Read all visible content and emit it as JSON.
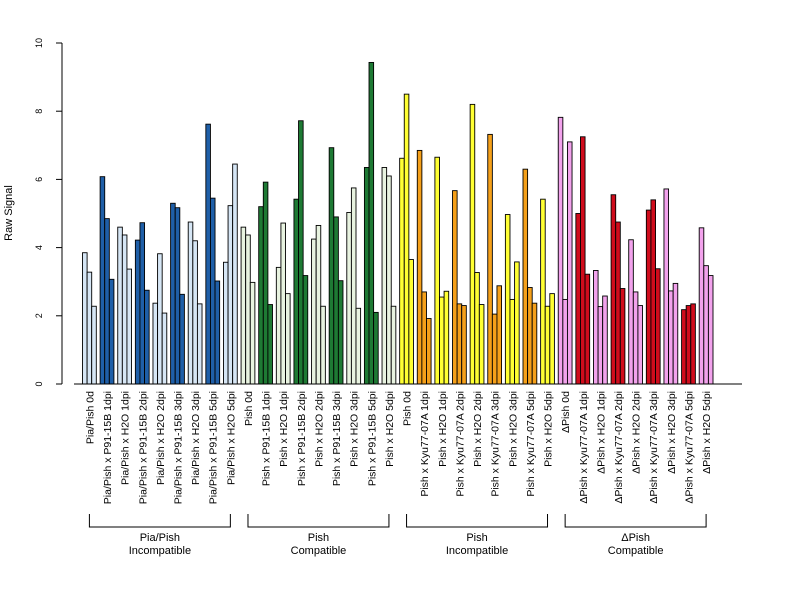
{
  "chart_data": {
    "type": "bar",
    "ylabel": "Raw Signal",
    "ylim": [
      0,
      10
    ],
    "yticks": [
      0,
      2,
      4,
      6,
      8,
      10
    ],
    "categories": [
      "Pia/Pish 0d",
      "Pia/Pish x P91-15B 1dpi",
      "Pia/Pish x H2O 1dpi",
      "Pia/Pish x P91-15B 2dpi",
      "Pia/Pish x H2O 2dpi",
      "Pia/Pish x P91-15B 3dpi",
      "Pia/Pish x H2O 3dpi",
      "Pia/Pish x P91-15B 5dpi",
      "Pia/Pish x H2O 5dpi",
      "Pish 0d",
      "Pish x P91-15B 1dpi",
      "Pish x H2O 1dpi",
      "Pish x P91-15B 2dpi",
      "Pish x H2O 2dpi",
      "Pish x P91-15B 3dpi",
      "Pish x H2O 3dpi",
      "Pish x P91-15B 5dpi",
      "Pish x H2O 5dpi",
      "Pish 0d",
      "Pish x Kyu77-07A 1dpi",
      "Pish x H2O 1dpi",
      "Pish x Kyu77-07A 2dpi",
      "Pish x H2O 2dpi",
      "Pish x Kyu77-07A 3dpi",
      "Pish x H2O 3dpi",
      "Pish x Kyu77-07A 5dpi",
      "Pish x H2O 5dpi",
      "ΔPish 0d",
      "ΔPish x Kyu77-07A 1dpi",
      "ΔPish x H2O 1dpi",
      "ΔPish x Kyu77-07A 2dpi",
      "ΔPish x H2O 2dpi",
      "ΔPish x Kyu77-07A 3dpi",
      "ΔPish x H2O 3dpi",
      "ΔPish x Kyu77-07A 5dpi",
      "ΔPish x H2O 5dpi"
    ],
    "replicate_values": [
      [
        3.85,
        3.28,
        2.28
      ],
      [
        6.08,
        4.85,
        3.07
      ],
      [
        4.6,
        4.37,
        3.37
      ],
      [
        4.22,
        4.73,
        2.75
      ],
      [
        2.37,
        3.82,
        2.08
      ],
      [
        5.3,
        5.17,
        2.63
      ],
      [
        4.75,
        4.2,
        2.35
      ],
      [
        7.62,
        5.45,
        3.02
      ],
      [
        3.57,
        5.23,
        6.45
      ],
      [
        4.6,
        4.37,
        2.98
      ],
      [
        5.2,
        5.92,
        2.33
      ],
      [
        3.42,
        4.72,
        2.65
      ],
      [
        5.42,
        7.72,
        3.18
      ],
      [
        4.25,
        4.65,
        2.28
      ],
      [
        6.93,
        4.9,
        3.03
      ],
      [
        5.03,
        5.75,
        2.22
      ],
      [
        6.35,
        9.43,
        2.1
      ],
      [
        6.35,
        6.1,
        2.28
      ],
      [
        6.62,
        8.5,
        3.65
      ],
      [
        6.85,
        2.7,
        1.92
      ],
      [
        6.65,
        2.55,
        2.72
      ],
      [
        5.67,
        2.35,
        2.3
      ],
      [
        8.2,
        3.27,
        2.33
      ],
      [
        7.32,
        2.05,
        2.88
      ],
      [
        4.97,
        2.48,
        3.58
      ],
      [
        6.3,
        2.83,
        2.37
      ],
      [
        5.42,
        2.28,
        2.65
      ],
      [
        7.82,
        2.48,
        7.1
      ],
      [
        5.0,
        7.25,
        3.22
      ],
      [
        3.33,
        2.27,
        2.58
      ],
      [
        5.55,
        4.75,
        2.8
      ],
      [
        4.23,
        2.7,
        2.3
      ],
      [
        5.1,
        5.4,
        3.38
      ],
      [
        5.72,
        2.73,
        2.95
      ],
      [
        2.18,
        2.3,
        2.35
      ],
      [
        4.58,
        3.47,
        3.18
      ]
    ],
    "bar_colors": [
      "#d6e6f5",
      "#1f5fa8",
      "#d6e6f5",
      "#1f5fa8",
      "#d6e6f5",
      "#1f5fa8",
      "#d6e6f5",
      "#1f5fa8",
      "#d6e6f5",
      "#e8f3e0",
      "#1e7a34",
      "#e8f3e0",
      "#1e7a34",
      "#e8f3e0",
      "#1e7a34",
      "#e8f3e0",
      "#1e7a34",
      "#e8f3e0",
      "#ffff33",
      "#f5a01a",
      "#ffff33",
      "#f5a01a",
      "#ffff33",
      "#f5a01a",
      "#ffff33",
      "#f5a01a",
      "#ffff33",
      "#f2a2ec",
      "#d00c1c",
      "#f2a2ec",
      "#d00c1c",
      "#f2a2ec",
      "#d00c1c",
      "#f2a2ec",
      "#d00c1c",
      "#f2a2ec"
    ],
    "groups": [
      {
        "label": "Pia/Pish\nIncompatible",
        "start": 0,
        "end": 8
      },
      {
        "label": "Pish\nCompatible",
        "start": 9,
        "end": 17
      },
      {
        "label": "Pish\nIncompatible",
        "start": 18,
        "end": 26
      },
      {
        "label": "ΔPish\nCompatible",
        "start": 27,
        "end": 35
      }
    ]
  }
}
